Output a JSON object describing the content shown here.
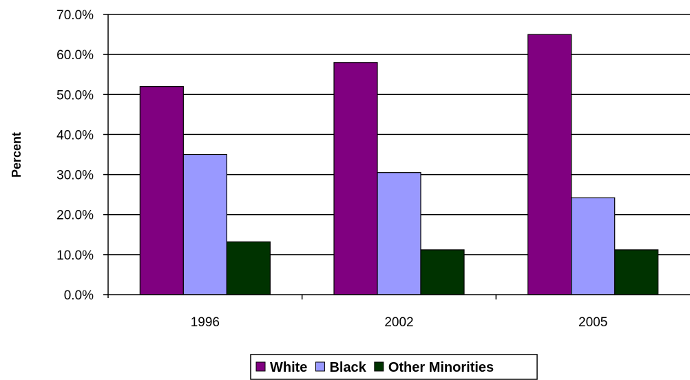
{
  "chart_data": {
    "type": "bar",
    "categories": [
      "1996",
      "2002",
      "2005"
    ],
    "series": [
      {
        "name": "White",
        "values": [
          52.0,
          58.0,
          65.0
        ],
        "color": "#800080"
      },
      {
        "name": "Black",
        "values": [
          35.0,
          30.5,
          24.2
        ],
        "color": "#9999FF"
      },
      {
        "name": "Other Minorities",
        "values": [
          13.2,
          11.2,
          11.2
        ],
        "color": "#003300"
      }
    ],
    "ylabel": "Percent",
    "ylim": [
      0,
      70
    ],
    "ytick_values": [
      0,
      10,
      20,
      30,
      40,
      50,
      60,
      70
    ],
    "ytick_labels": [
      "0.0%",
      "10.0%",
      "20.0%",
      "30.0%",
      "40.0%",
      "50.0%",
      "60.0%",
      "70.0%"
    ],
    "grid": true,
    "legend_position": "bottom"
  }
}
